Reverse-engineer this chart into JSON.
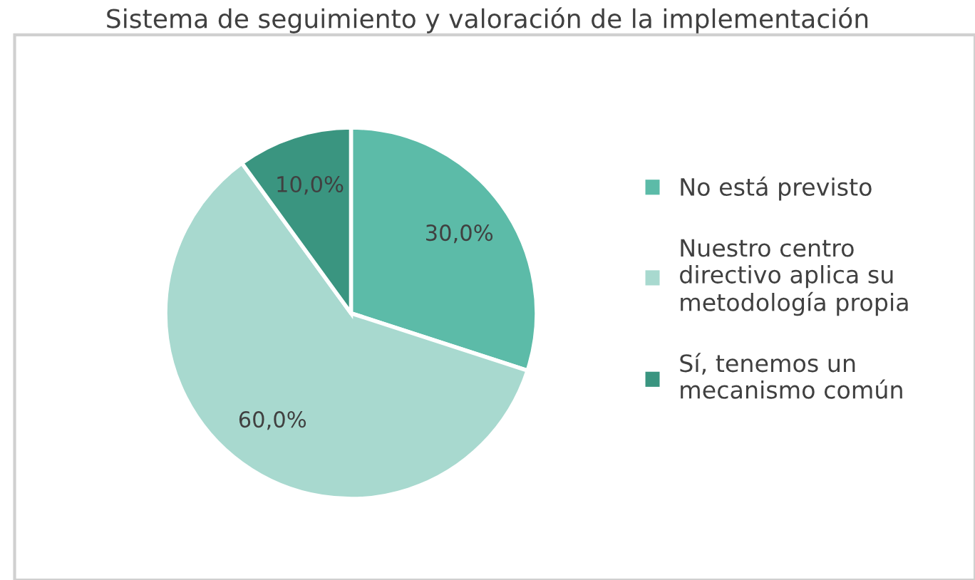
{
  "chart_data": {
    "type": "pie",
    "title": "Sistema de seguimiento y valoración de la implementación",
    "categories": [
      "No está previsto",
      "Nuestro centro directivo aplica su metodología propia",
      "Sí, tenemos un mecanismo común"
    ],
    "values": [
      30,
      60,
      10
    ],
    "colors": [
      "#5cbba8",
      "#a8d9cf",
      "#3a9580"
    ],
    "value_labels": [
      "30,0%",
      "60,0%",
      "10,0%"
    ],
    "legend": "right"
  }
}
